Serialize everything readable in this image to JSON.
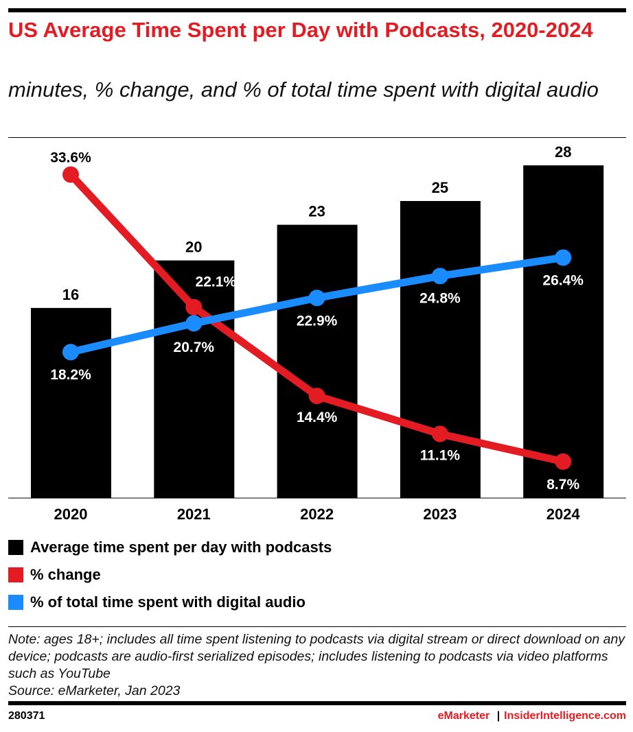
{
  "chart_data": {
    "type": "bar+line",
    "title": "US Average Time Spent per Day with Podcasts, 2020-2024",
    "subtitle": "minutes, % change, and % of total time spent with digital audio",
    "categories": [
      "2020",
      "2021",
      "2022",
      "2023",
      "2024"
    ],
    "series": [
      {
        "name": "Average time spent per day with podcasts",
        "type": "bar",
        "color": "#000000",
        "values": [
          16,
          20,
          23,
          25,
          28
        ],
        "labels": [
          "16",
          "20",
          "23",
          "25",
          "28"
        ]
      },
      {
        "name": "% change",
        "type": "line",
        "color": "#e31b23",
        "values": [
          33.6,
          22.1,
          14.4,
          11.1,
          8.7
        ],
        "labels": [
          "33.6%",
          "22.1%",
          "14.4%",
          "11.1%",
          "8.7%"
        ]
      },
      {
        "name": "% of total time spent with digital audio",
        "type": "line",
        "color": "#1a8cff",
        "values": [
          18.2,
          20.7,
          22.9,
          24.8,
          26.4
        ],
        "labels": [
          "18.2%",
          "20.7%",
          "22.9%",
          "24.8%",
          "26.4%"
        ]
      }
    ],
    "legend_position": "bottom",
    "grid": false
  },
  "note": "Note: ages 18+; includes all time spent listening to podcasts via digital stream or direct download on any device; podcasts are audio-first serialized episodes; includes listening to podcasts via video platforms such as YouTube",
  "source": "Source: eMarketer, Jan 2023",
  "footer": {
    "id": "280371",
    "brand1": "eMarketer",
    "sep": "|",
    "brand2": "InsiderIntelligence.com"
  }
}
